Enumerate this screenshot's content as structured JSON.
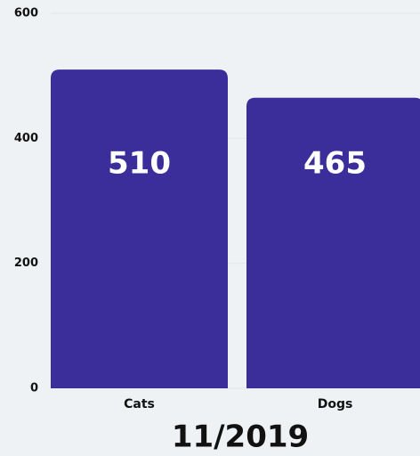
{
  "chart_data": {
    "type": "bar",
    "title": "11/2019",
    "categories": [
      "Cats",
      "Dogs"
    ],
    "values": [
      510,
      465
    ],
    "color": "#3b2d9a",
    "ylim": [
      0,
      600
    ],
    "yticks": [
      0,
      200,
      400,
      600
    ],
    "grid": true
  }
}
